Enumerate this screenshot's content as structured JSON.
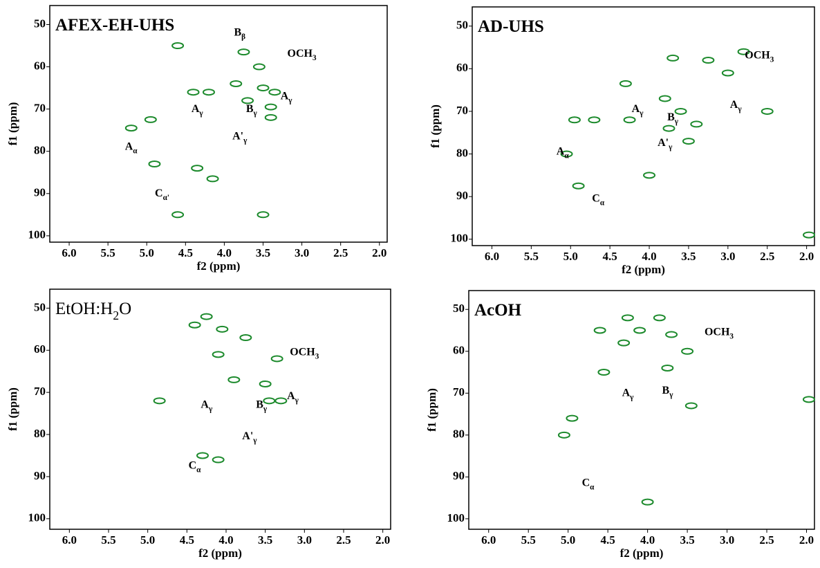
{
  "chart_data": [
    {
      "type": "contour",
      "title": [
        "AFEX-EH-UHS"
      ],
      "bold": true,
      "xlabel": "f2 (ppm)",
      "ylabel": "f1 (ppm)",
      "color": "#1c8a2c",
      "xlim": [
        6.25,
        1.9
      ],
      "ylim": [
        45.5,
        101.5
      ],
      "y_inverted": true,
      "xticks": [
        {
          "value": 6,
          "label": "6.0"
        },
        5.5,
        {
          "value": 5,
          "label": "5.0"
        },
        4.5,
        {
          "value": 4,
          "label": "4.0"
        },
        3.5,
        {
          "value": 3,
          "label": "3.0"
        },
        2.5,
        {
          "value": 2,
          "label": "2.0"
        }
      ],
      "yticks": [
        50,
        60,
        70,
        80,
        90,
        100
      ],
      "x": [
        3.75,
        3.55,
        3.85,
        3.5,
        3.35,
        4.2,
        3.7,
        3.4,
        3.4,
        4.95,
        5.2,
        4.35,
        4.15,
        4.9,
        4.6,
        4.4,
        4.6,
        3.5
      ],
      "values": [
        56.5,
        60,
        64,
        65,
        66,
        66,
        68,
        69.5,
        72,
        72.5,
        74.5,
        84,
        86.5,
        83,
        55,
        66,
        95,
        95
      ],
      "annotations": [
        [
          "B",
          "β"
        ],
        [
          "OCH",
          "3"
        ],
        [
          "A",
          "γ"
        ],
        [
          "B",
          "γ"
        ],
        [
          "A",
          "γ"
        ],
        [
          "A'",
          "γ"
        ],
        [
          "A",
          "α"
        ],
        [
          "C",
          "α'"
        ]
      ]
    },
    {
      "type": "contour",
      "title": [
        "AD-UHS"
      ],
      "bold": true,
      "xlabel": "f2 (ppm)",
      "ylabel": "f1 (ppm)",
      "color": "#1c8a2c",
      "xlim": [
        6.25,
        1.9
      ],
      "ylim": [
        45.5,
        101.5
      ],
      "y_inverted": true,
      "xticks": [
        {
          "value": 6,
          "label": "6.0"
        },
        5.5,
        {
          "value": 5,
          "label": "5.0"
        },
        4.5,
        {
          "value": 4,
          "label": "4.0"
        },
        3.5,
        {
          "value": 3,
          "label": "3.0"
        },
        2.5,
        {
          "value": 2,
          "label": "2.0"
        }
      ],
      "yticks": [
        50,
        60,
        70,
        80,
        90,
        100
      ],
      "x": [
        3.7,
        3.25,
        3.0,
        4.3,
        3.8,
        3.6,
        3.4,
        3.75,
        3.5,
        4.95,
        5.05,
        4.9,
        4.0,
        4.25,
        4.7,
        2.5,
        1.97,
        2.8
      ],
      "values": [
        57.5,
        58,
        61,
        63.5,
        67,
        70,
        73,
        74,
        77,
        72,
        80,
        87.5,
        85,
        72,
        72,
        70,
        99,
        56
      ],
      "annotations": [
        [
          "OCH",
          "3"
        ],
        [
          "A",
          "γ"
        ],
        [
          "B",
          "γ"
        ],
        [
          "A",
          "γ"
        ],
        [
          "A'",
          "γ"
        ],
        [
          "A",
          "α"
        ],
        [
          "C",
          "α"
        ]
      ]
    },
    {
      "type": "contour",
      "title": [
        "EtOH:H",
        "2",
        "O"
      ],
      "bold": false,
      "xlabel": "f2 (ppm)",
      "ylabel": "f1 (ppm)",
      "color": "#1c8a2c",
      "xlim": [
        6.25,
        1.9
      ],
      "ylim": [
        45.5,
        102.5
      ],
      "y_inverted": true,
      "xticks": [
        {
          "value": 6,
          "label": "6.0"
        },
        5.5,
        {
          "value": 5,
          "label": "5.0"
        },
        4.5,
        {
          "value": 4,
          "label": "4.0"
        },
        3.5,
        {
          "value": 3,
          "label": "3.0"
        },
        2.5,
        {
          "value": 2,
          "label": "2.0"
        }
      ],
      "yticks": [
        50,
        60,
        70,
        80,
        90,
        100
      ],
      "x": [
        3.75,
        4.25,
        4.05,
        4.4,
        3.35,
        4.85,
        3.45,
        3.3,
        3.5,
        4.1,
        4.3,
        3.9,
        4.1
      ],
      "values": [
        57,
        52,
        55,
        54,
        62,
        72,
        72,
        72,
        68,
        86,
        85,
        67,
        61
      ],
      "annotations": [
        [
          "OCH",
          "3"
        ],
        [
          "A",
          "γ"
        ],
        [
          "B",
          "γ"
        ],
        [
          "A",
          "γ"
        ],
        [
          "A'",
          "γ"
        ],
        [
          "C",
          "α"
        ]
      ]
    },
    {
      "type": "contour",
      "title": [
        "AcOH"
      ],
      "bold": true,
      "xlabel": "f2 (ppm)",
      "ylabel": "f1 (ppm)",
      "color": "#1c8a2c",
      "xlim": [
        6.25,
        1.9
      ],
      "ylim": [
        45.5,
        102.5
      ],
      "y_inverted": true,
      "xticks": [
        {
          "value": 6,
          "label": "6.0"
        },
        5.5,
        {
          "value": 5,
          "label": "5.0"
        },
        4.5,
        {
          "value": 4,
          "label": "4.0"
        },
        3.5,
        {
          "value": 3,
          "label": "3.0"
        },
        2.5,
        {
          "value": 2,
          "label": "2.0"
        }
      ],
      "yticks": [
        50,
        60,
        70,
        80,
        90,
        100
      ],
      "x": [
        3.7,
        4.25,
        4.3,
        4.1,
        3.85,
        4.6,
        3.5,
        4.55,
        3.45,
        4.95,
        5.05,
        4.0,
        1.97,
        3.75
      ],
      "values": [
        56,
        52,
        58,
        55,
        52,
        55,
        60,
        65,
        73,
        76,
        80,
        96,
        71.5,
        64
      ],
      "annotations": [
        [
          "OCH",
          "3"
        ],
        [
          "A",
          "γ"
        ],
        [
          "B",
          "γ"
        ],
        [
          "C",
          "α"
        ]
      ]
    }
  ]
}
